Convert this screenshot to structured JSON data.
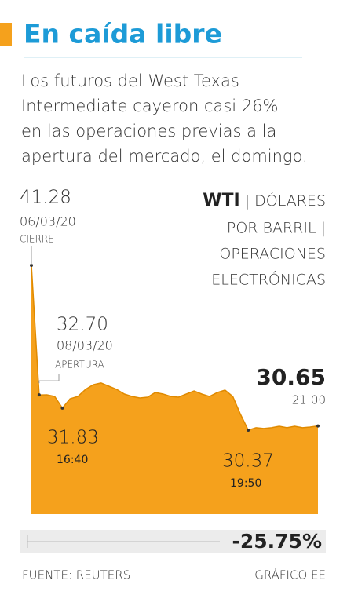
{
  "chart_data": {
    "type": "area",
    "title": "En caída libre",
    "subtitle_lines": [
      "Los futuros del West Texas",
      "Intermediate cayeron casi 26%",
      "en las operaciones previas a la",
      "apertura del mercado, el domingo."
    ],
    "series_label": "WTI",
    "unit_lines": [
      "| DÓLARES",
      "POR BARRIL |",
      "OPERACIONES",
      "ELECTRÓNICAS"
    ],
    "color": "#f5a11c",
    "values": [
      41.28,
      32.7,
      32.71,
      32.6,
      31.83,
      32.45,
      32.6,
      33.07,
      33.38,
      33.49,
      33.28,
      33.07,
      32.76,
      32.6,
      32.5,
      32.55,
      32.86,
      32.76,
      32.6,
      32.55,
      32.76,
      32.97,
      32.76,
      32.6,
      32.86,
      33.02,
      32.6,
      31.41,
      30.37,
      30.53,
      30.48,
      30.53,
      30.63,
      30.53,
      30.63,
      30.53,
      30.58,
      30.65
    ],
    "annotations": [
      {
        "value": "41.28",
        "date": "06/03/20",
        "note": "CIERRE"
      },
      {
        "value": "32.70",
        "date": "08/03/20",
        "note": "APERTURA"
      },
      {
        "value": "31.83",
        "time": "16:40"
      },
      {
        "value": "30.37",
        "time": "19:50"
      },
      {
        "value": "30.65",
        "time": "21:00"
      }
    ],
    "change_label": "-25.75%",
    "source": "FUENTE: REUTERS",
    "credit": "GRÁFICO EE"
  }
}
